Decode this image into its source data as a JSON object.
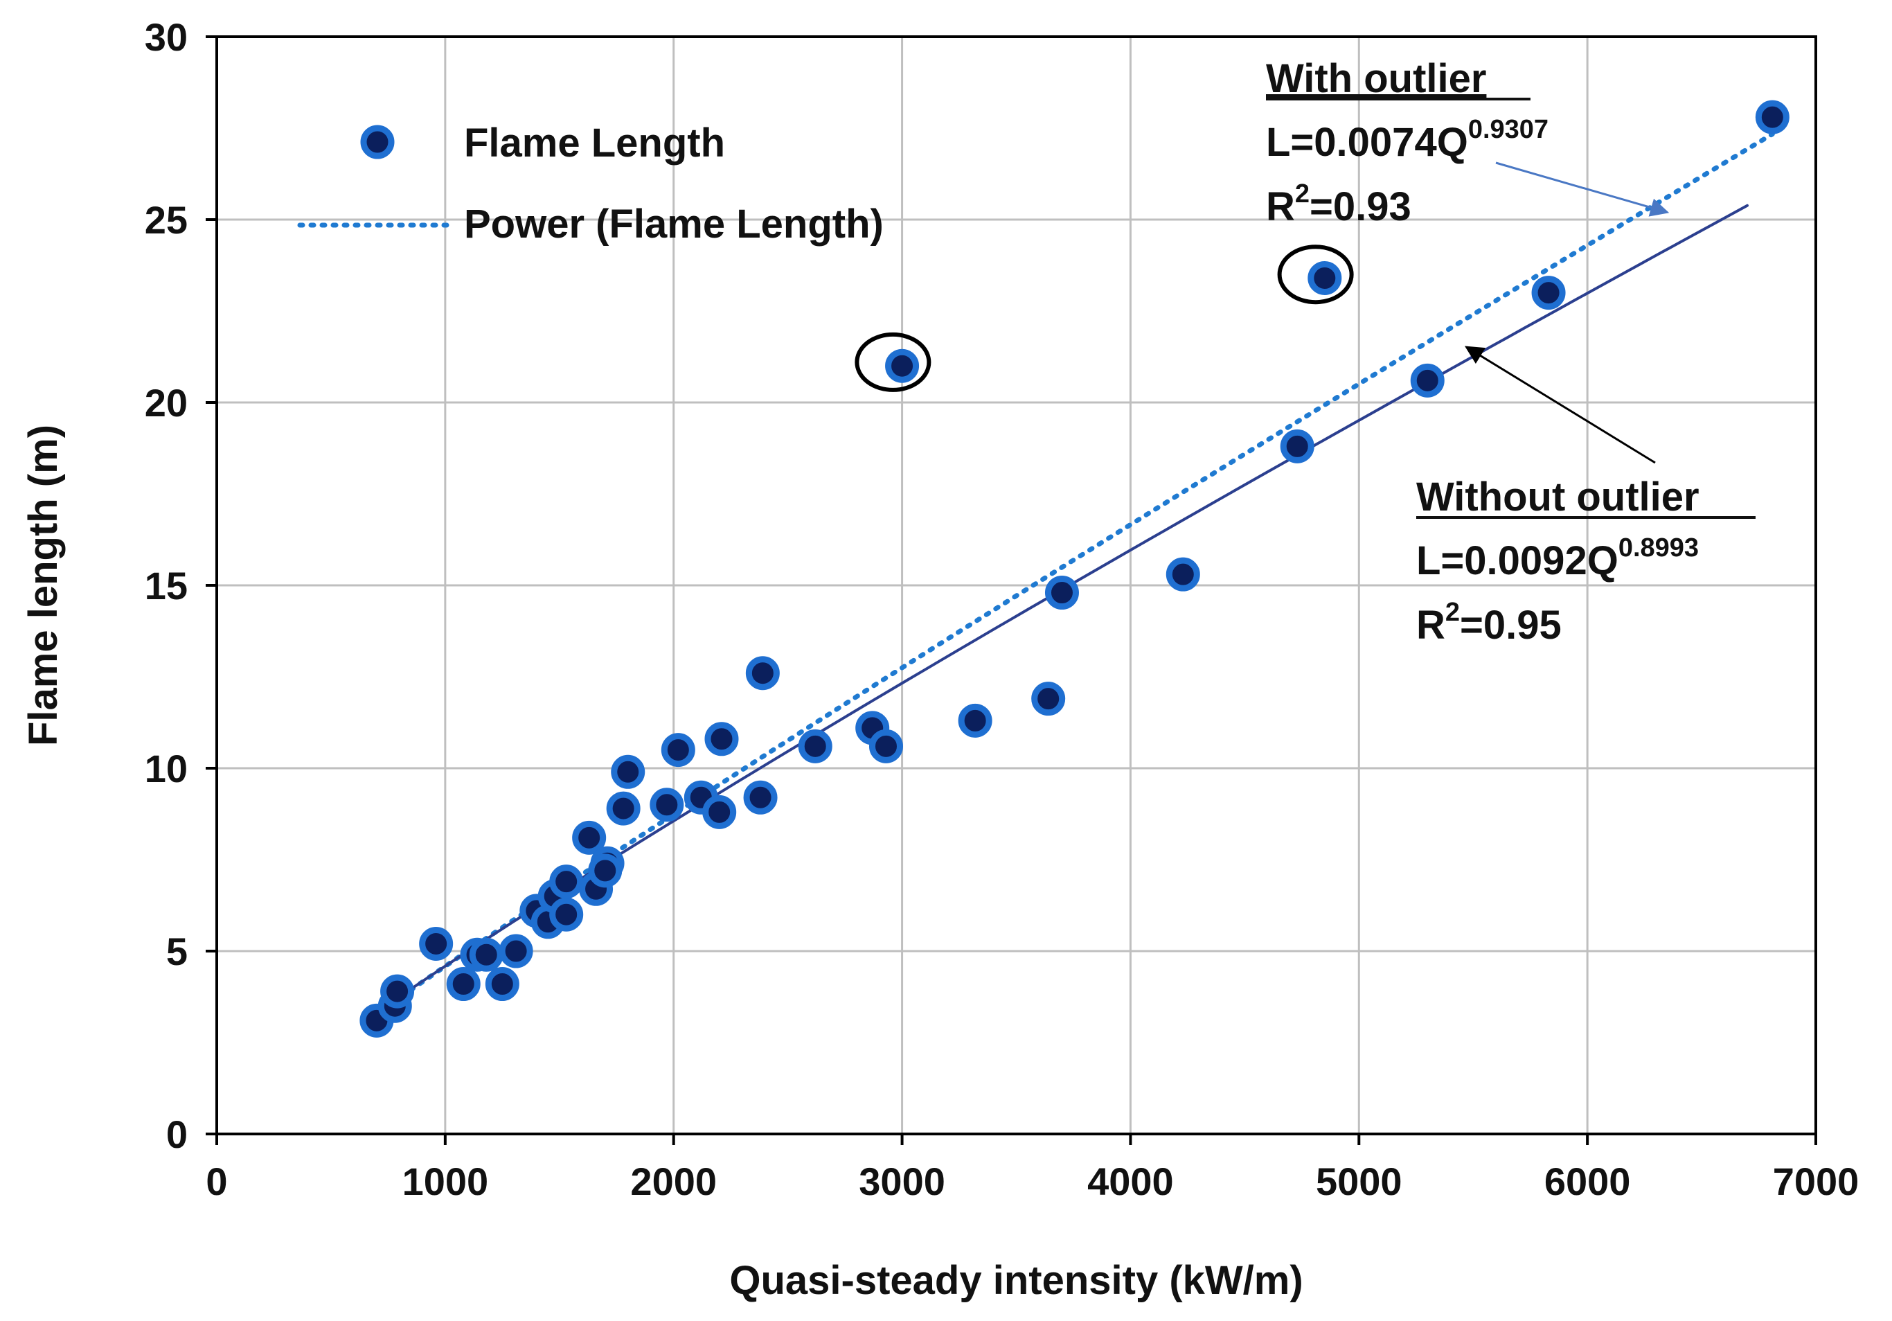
{
  "chart_data": {
    "type": "scatter",
    "title": "",
    "xlabel": "Quasi-steady intensity (kW/m)",
    "ylabel": "Flame length  (m)",
    "xlim": [
      0,
      7000
    ],
    "ylim": [
      0,
      30
    ],
    "xticks": [
      0,
      1000,
      2000,
      3000,
      4000,
      5000,
      6000,
      7000
    ],
    "yticks": [
      0,
      5,
      10,
      15,
      20,
      25,
      30
    ],
    "grid": true,
    "legend_position": "top-left",
    "colors": {
      "point_fill": "#0b1f5c",
      "point_ring": "#1f6fd1",
      "fit_with_outlier": "#1f7ad1",
      "fit_without_outlier": "#2b3f8f",
      "outlier_circle": "#000000"
    },
    "series": [
      {
        "name": "Flame Length",
        "kind": "points",
        "x": [
          700,
          780,
          790,
          960,
          1080,
          1140,
          1180,
          1250,
          1310,
          1400,
          1450,
          1480,
          1530,
          1530,
          1660,
          1630,
          1710,
          1700,
          1780,
          1800,
          1970,
          2020,
          2120,
          2210,
          2200,
          2380,
          2390,
          2620,
          2870,
          2930,
          3000,
          3320,
          3640,
          3700,
          4230,
          4730,
          4850,
          5300,
          5830,
          6810
        ],
        "y": [
          3.1,
          3.5,
          3.9,
          5.2,
          4.1,
          4.9,
          4.9,
          4.1,
          5.0,
          6.1,
          5.8,
          6.5,
          6.0,
          6.9,
          6.7,
          8.1,
          7.4,
          7.2,
          8.9,
          9.9,
          9.0,
          10.5,
          9.2,
          10.8,
          8.8,
          9.2,
          12.6,
          10.6,
          11.1,
          10.6,
          21.0,
          11.3,
          11.9,
          14.8,
          15.3,
          18.8,
          23.4,
          20.6,
          23.0,
          27.8
        ]
      },
      {
        "name": "Power (Flame Length)",
        "kind": "power_fit",
        "coef": 0.0074,
        "exponent": 0.9307,
        "x_range": [
          770,
          6810
        ]
      },
      {
        "kind": "power_fit",
        "coef": 0.0092,
        "exponent": 0.8993,
        "x_range": [
          700,
          6700
        ]
      }
    ],
    "legend": [
      {
        "label": "Flame Length",
        "symbol": "marker"
      },
      {
        "label": "Power (Flame Length)",
        "symbol": "dotted-line"
      }
    ],
    "outliers_circled": [
      {
        "x": 2960,
        "y": 21.1
      },
      {
        "x": 4810,
        "y": 23.5
      }
    ],
    "annotations": {
      "with_outlier": {
        "heading": "With outlier",
        "eq_main": "L=0.0074Q",
        "eq_exp": "0.9307",
        "r2_prefix": "R",
        "r2_sup": "2",
        "r2_value": "=0.93",
        "arrow_to": {
          "x": 6350,
          "y": 25.2
        }
      },
      "without_outlier": {
        "heading": "Without outlier",
        "eq_main": "L=0.0092Q",
        "eq_exp": "0.8993",
        "r2_prefix": "R",
        "r2_sup": "2",
        "r2_value": "=0.95",
        "arrow_to": {
          "x": 5000,
          "y": 21.8
        }
      }
    }
  }
}
